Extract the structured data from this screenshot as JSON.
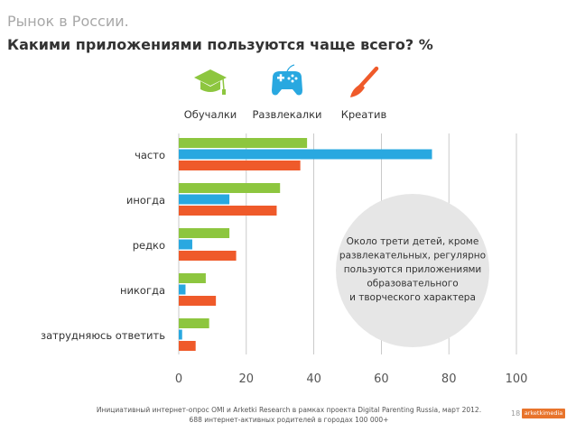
{
  "header": {
    "subtitle": "Рынок в России.",
    "title": "Какими приложениями пользуются чаще всего? %"
  },
  "chart_data": {
    "type": "bar",
    "orientation": "horizontal",
    "categories": [
      "часто",
      "иногда",
      "редко",
      "никогда",
      "затрудняюсь ответить"
    ],
    "series": [
      {
        "name": "Обучалки",
        "color": "#8dc63f",
        "icon": "graduation-cap-icon",
        "values": [
          38,
          30,
          15,
          8,
          9
        ]
      },
      {
        "name": "Развлекалки",
        "color": "#29a8e0",
        "icon": "gamepad-icon",
        "values": [
          75,
          15,
          4,
          2,
          1
        ]
      },
      {
        "name": "Креатив",
        "color": "#ef5a2a",
        "icon": "paintbrush-icon",
        "values": [
          36,
          29,
          17,
          11,
          5
        ]
      }
    ],
    "xlim": [
      0,
      100
    ],
    "xticks": [
      0,
      20,
      40,
      60,
      80,
      100
    ],
    "grid": true,
    "legend": "top"
  },
  "callout": {
    "lines": [
      "Около трети детей, кроме",
      "развлекательных, регулярно",
      "пользуются приложениями",
      "образовательного",
      "и творческого характера"
    ],
    "fill": "#e6e6e6"
  },
  "footer": {
    "line1": "Инициативный интернет-опрос OMI и Arketki Research в рамках проекта Digital Parenting Russia, март 2012.",
    "line2": "688 интернет-активных родителей в городах 100 000+",
    "page_number": "18",
    "brand": "arketkimedia"
  }
}
